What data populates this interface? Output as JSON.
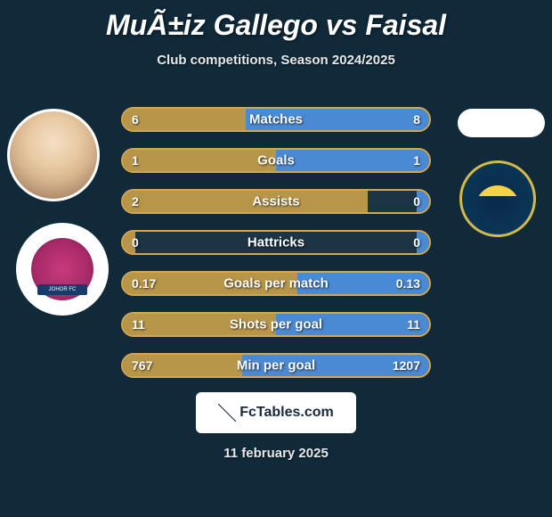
{
  "title": "MuÃ±iz Gallego vs Faisal",
  "subtitle": "Club competitions, Season 2024/2025",
  "footer_brand": "FcTables.com",
  "footer_date": "11 february 2025",
  "bar_colors": {
    "border": "#d4a84a",
    "left_fill": "#d4a84a",
    "right_fill": "#4a8ad4"
  },
  "logos": {
    "left_band_text": "JOHOR FC"
  },
  "stats": [
    {
      "label": "Matches",
      "left_val": "6",
      "right_val": "8",
      "left_pct": 40,
      "right_pct": 60
    },
    {
      "label": "Goals",
      "left_val": "1",
      "right_val": "1",
      "left_pct": 50,
      "right_pct": 50
    },
    {
      "label": "Assists",
      "left_val": "2",
      "right_val": "0",
      "left_pct": 80,
      "right_pct": 4
    },
    {
      "label": "Hattricks",
      "left_val": "0",
      "right_val": "0",
      "left_pct": 4,
      "right_pct": 4
    },
    {
      "label": "Goals per match",
      "left_val": "0.17",
      "right_val": "0.13",
      "left_pct": 57,
      "right_pct": 43
    },
    {
      "label": "Shots per goal",
      "left_val": "11",
      "right_val": "11",
      "left_pct": 50,
      "right_pct": 50
    },
    {
      "label": "Min per goal",
      "left_val": "767",
      "right_val": "1207",
      "left_pct": 39,
      "right_pct": 61
    }
  ]
}
